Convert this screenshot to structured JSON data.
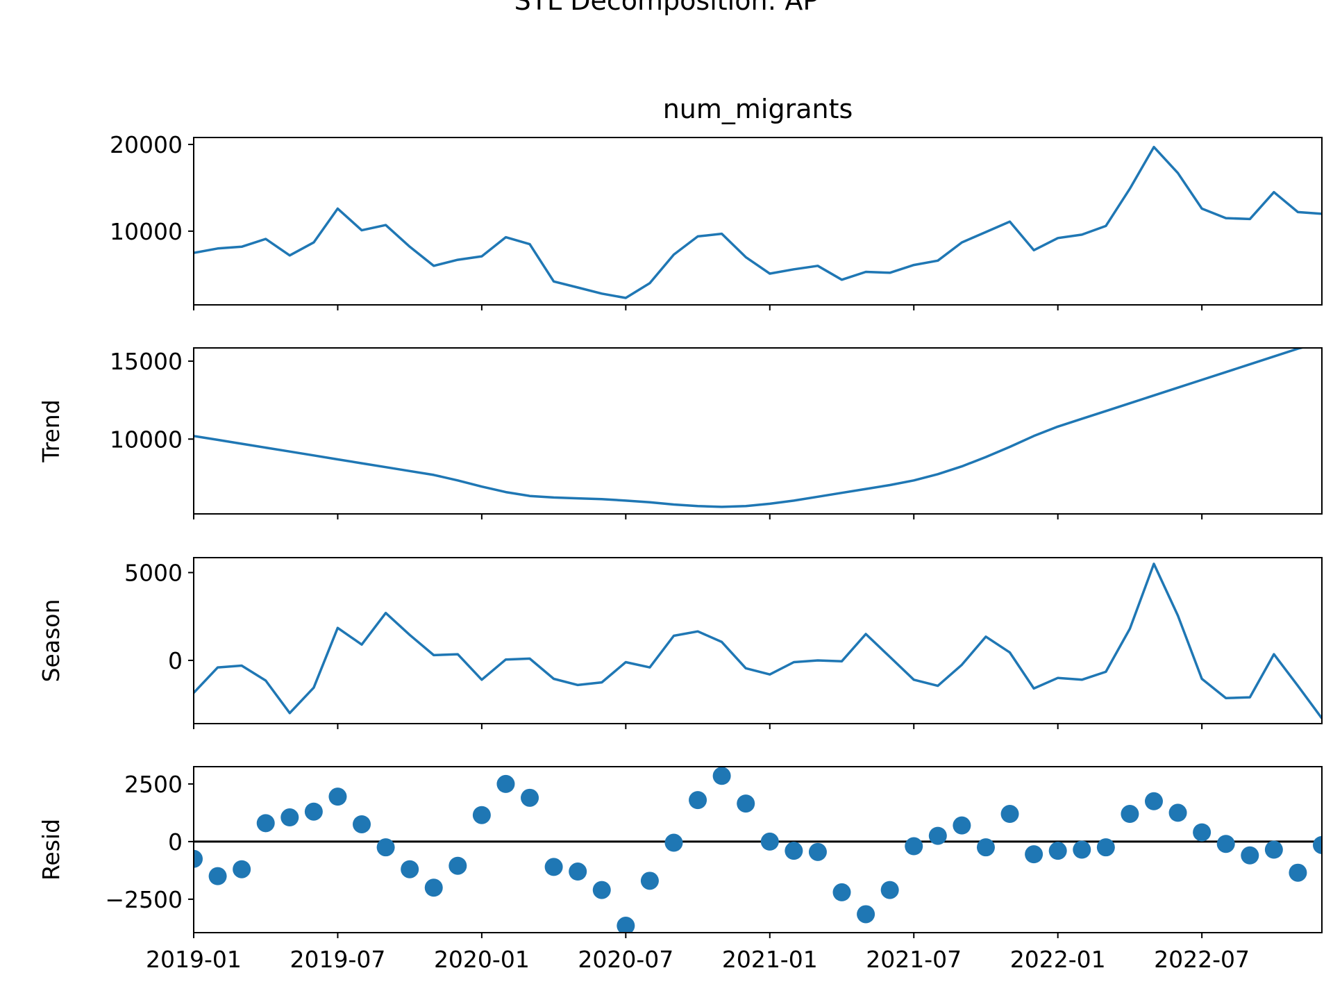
{
  "figure": {
    "suptitle": "STL Decomposition: AP",
    "line_color": "#1f77b4"
  },
  "chart_data": [
    {
      "type": "line",
      "title": "num_migrants",
      "ylabel": "",
      "ylim": [
        1500,
        20800
      ],
      "yticks": [
        10000,
        20000
      ],
      "x": [
        "2019-01",
        "2019-02",
        "2019-03",
        "2019-04",
        "2019-05",
        "2019-06",
        "2019-07",
        "2019-08",
        "2019-09",
        "2019-10",
        "2019-11",
        "2019-12",
        "2020-01",
        "2020-02",
        "2020-03",
        "2020-04",
        "2020-05",
        "2020-06",
        "2020-07",
        "2020-08",
        "2020-09",
        "2020-10",
        "2020-11",
        "2020-12",
        "2021-01",
        "2021-02",
        "2021-03",
        "2021-04",
        "2021-05",
        "2021-06",
        "2021-07",
        "2021-08",
        "2021-09",
        "2021-10",
        "2021-11",
        "2021-12",
        "2022-01",
        "2022-02",
        "2022-03",
        "2022-04",
        "2022-05",
        "2022-06",
        "2022-07",
        "2022-08",
        "2022-09",
        "2022-10",
        "2022-11",
        "2022-12"
      ],
      "values": [
        7500,
        8000,
        8200,
        9100,
        7200,
        8700,
        12600,
        10100,
        10700,
        8200,
        6000,
        6700,
        7100,
        9300,
        8500,
        4200,
        3500,
        2800,
        2300,
        4000,
        7300,
        9400,
        9700,
        7000,
        5100,
        5600,
        6000,
        4400,
        5300,
        5200,
        6100,
        6600,
        8700,
        9900,
        11100,
        7800,
        9200,
        9600,
        10600,
        14900,
        19700,
        16700,
        12600,
        11500,
        11400,
        14500,
        12200,
        12000
      ],
      "xticks": [
        "2019-01",
        "2019-07",
        "2020-01",
        "2020-07",
        "2021-01",
        "2021-07",
        "2022-01",
        "2022-07"
      ],
      "show_xtick_labels": false
    },
    {
      "type": "line",
      "title": "",
      "ylabel": "Trend",
      "ylim": [
        5200,
        15850
      ],
      "yticks": [
        10000,
        15000
      ],
      "x": [
        "2019-01",
        "2019-02",
        "2019-03",
        "2019-04",
        "2019-05",
        "2019-06",
        "2019-07",
        "2019-08",
        "2019-09",
        "2019-10",
        "2019-11",
        "2019-12",
        "2020-01",
        "2020-02",
        "2020-03",
        "2020-04",
        "2020-05",
        "2020-06",
        "2020-07",
        "2020-08",
        "2020-09",
        "2020-10",
        "2020-11",
        "2020-12",
        "2021-01",
        "2021-02",
        "2021-03",
        "2021-04",
        "2021-05",
        "2021-06",
        "2021-07",
        "2021-08",
        "2021-09",
        "2021-10",
        "2021-11",
        "2021-12",
        "2022-01",
        "2022-02",
        "2022-03",
        "2022-04",
        "2022-05",
        "2022-06",
        "2022-07",
        "2022-08",
        "2022-09",
        "2022-10",
        "2022-11",
        "2022-12"
      ],
      "values": [
        10200,
        9950,
        9700,
        9450,
        9200,
        8950,
        8700,
        8450,
        8200,
        7950,
        7700,
        7350,
        6950,
        6600,
        6350,
        6250,
        6200,
        6150,
        6050,
        5950,
        5800,
        5700,
        5650,
        5700,
        5850,
        6050,
        6300,
        6550,
        6800,
        7050,
        7350,
        7750,
        8250,
        8850,
        9500,
        10200,
        10800,
        11300,
        11800,
        12300,
        12800,
        13300,
        13800,
        14300,
        14800,
        15300,
        15800,
        16200
      ],
      "xticks": [
        "2019-01",
        "2019-07",
        "2020-01",
        "2020-07",
        "2021-01",
        "2021-07",
        "2022-01",
        "2022-07"
      ],
      "show_xtick_labels": false
    },
    {
      "type": "line",
      "title": "",
      "ylabel": "Season",
      "ylim": [
        -3600,
        5850
      ],
      "yticks": [
        0,
        5000
      ],
      "x": [
        "2019-01",
        "2019-02",
        "2019-03",
        "2019-04",
        "2019-05",
        "2019-06",
        "2019-07",
        "2019-08",
        "2019-09",
        "2019-10",
        "2019-11",
        "2019-12",
        "2020-01",
        "2020-02",
        "2020-03",
        "2020-04",
        "2020-05",
        "2020-06",
        "2020-07",
        "2020-08",
        "2020-09",
        "2020-10",
        "2020-11",
        "2020-12",
        "2021-01",
        "2021-02",
        "2021-03",
        "2021-04",
        "2021-05",
        "2021-06",
        "2021-07",
        "2021-08",
        "2021-09",
        "2021-10",
        "2021-11",
        "2021-12",
        "2022-01",
        "2022-02",
        "2022-03",
        "2022-04",
        "2022-05",
        "2022-06",
        "2022-07",
        "2022-08",
        "2022-09",
        "2022-10",
        "2022-11",
        "2022-12"
      ],
      "values": [
        -1850,
        -400,
        -300,
        -1150,
        -3000,
        -1550,
        1850,
        900,
        2700,
        1450,
        300,
        350,
        -1100,
        50,
        100,
        -1050,
        -1400,
        -1250,
        -100,
        -400,
        1400,
        1650,
        1050,
        -450,
        -800,
        -100,
        0,
        -50,
        1500,
        200,
        -1100,
        -1450,
        -250,
        1350,
        450,
        -1600,
        -1000,
        -1100,
        -650,
        1800,
        5500,
        2550,
        -1050,
        -2150,
        -2100,
        350,
        -1450,
        -3300
      ],
      "xticks": [
        "2019-01",
        "2019-07",
        "2020-01",
        "2020-07",
        "2021-01",
        "2021-07",
        "2022-01",
        "2022-07"
      ],
      "show_xtick_labels": false
    },
    {
      "type": "scatter",
      "title": "",
      "ylabel": "Resid",
      "ylim": [
        -3950,
        3250
      ],
      "yticks": [
        -2500,
        0,
        2500
      ],
      "baseline": 0,
      "x": [
        "2019-01",
        "2019-02",
        "2019-03",
        "2019-04",
        "2019-05",
        "2019-06",
        "2019-07",
        "2019-08",
        "2019-09",
        "2019-10",
        "2019-11",
        "2019-12",
        "2020-01",
        "2020-02",
        "2020-03",
        "2020-04",
        "2020-05",
        "2020-06",
        "2020-07",
        "2020-08",
        "2020-09",
        "2020-10",
        "2020-11",
        "2020-12",
        "2021-01",
        "2021-02",
        "2021-03",
        "2021-04",
        "2021-05",
        "2021-06",
        "2021-07",
        "2021-08",
        "2021-09",
        "2021-10",
        "2021-11",
        "2021-12",
        "2022-01",
        "2022-02",
        "2022-03",
        "2022-04",
        "2022-05",
        "2022-06",
        "2022-07",
        "2022-08",
        "2022-09",
        "2022-10",
        "2022-11",
        "2022-12"
      ],
      "values": [
        -750,
        -1500,
        -1200,
        800,
        1050,
        1300,
        1950,
        750,
        -250,
        -1200,
        -2000,
        -1050,
        1150,
        2500,
        1900,
        -1100,
        -1300,
        -2100,
        -3650,
        -1700,
        -50,
        1800,
        2850,
        1650,
        0,
        -400,
        -450,
        -2200,
        -3150,
        -2100,
        -200,
        250,
        700,
        -250,
        1200,
        -550,
        -400,
        -350,
        -250,
        1200,
        1750,
        1250,
        400,
        -100,
        -600,
        -350,
        -1350,
        -150
      ],
      "xticks": [
        "2019-01",
        "2019-07",
        "2020-01",
        "2020-07",
        "2021-01",
        "2021-07",
        "2022-01",
        "2022-07"
      ],
      "show_xtick_labels": true
    }
  ]
}
